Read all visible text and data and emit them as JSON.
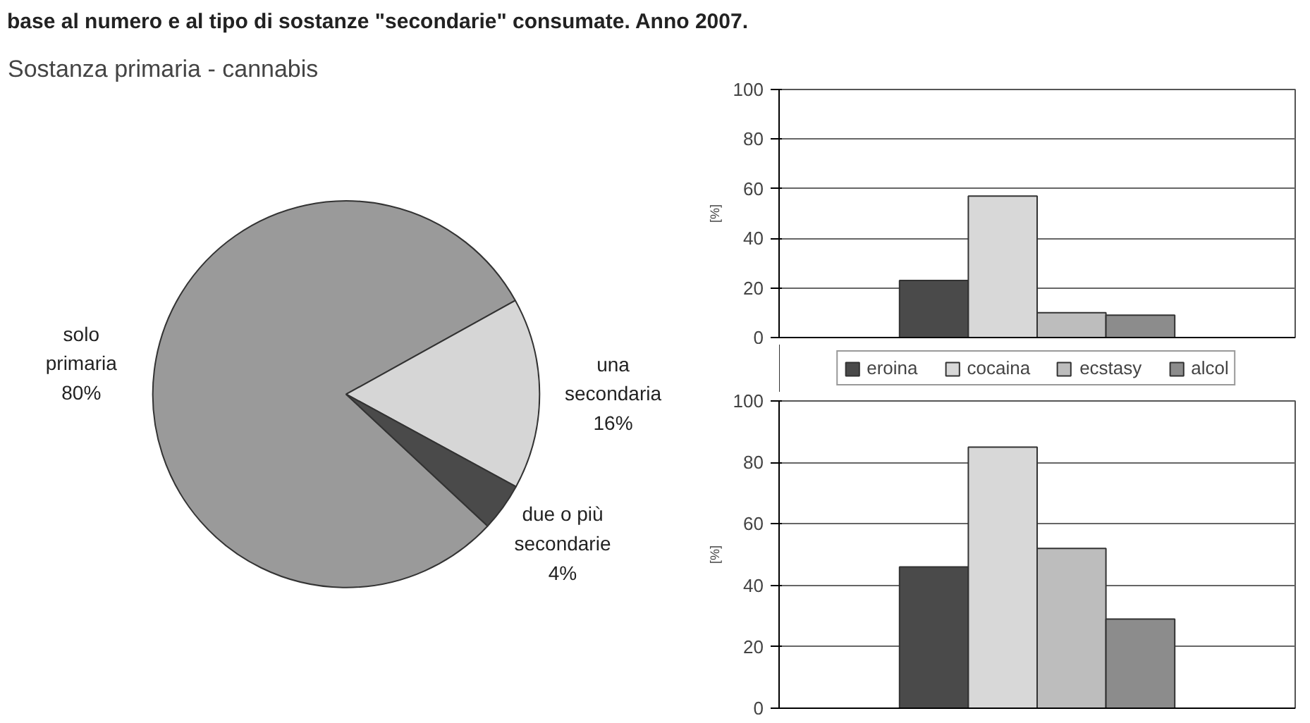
{
  "chart_data": [
    {
      "type": "pie",
      "title": "Sostanza primaria - cannabis",
      "annotations": [
        "base al numero e al tipo di sostanze \"secondarie\" consumate. Anno 2007."
      ],
      "categories": [
        "solo primaria",
        "una secondaria",
        "due o più secondarie"
      ],
      "values": [
        80,
        16,
        4
      ],
      "value_labels": [
        "80%",
        "16%",
        "4%"
      ],
      "colors": [
        "#9a9a9a",
        "#d6d6d6",
        "#4a4a4a"
      ]
    },
    {
      "type": "bar",
      "categories": [
        null
      ],
      "ylabel": "[%]",
      "ylim": [
        0,
        100
      ],
      "yticks": [
        0,
        20,
        40,
        60,
        80,
        100
      ],
      "grid": "y",
      "legend": "bottom",
      "series": [
        {
          "name": "eroina",
          "color": "#4a4a4a",
          "values": [
            23
          ]
        },
        {
          "name": "cocaina",
          "color": "#d8d8d8",
          "values": [
            57
          ]
        },
        {
          "name": "ecstasy",
          "color": "#bdbdbd",
          "values": [
            10
          ]
        },
        {
          "name": "alcol",
          "color": "#8c8c8c",
          "values": [
            9
          ]
        }
      ]
    },
    {
      "type": "bar",
      "categories": [
        null
      ],
      "ylabel": "[%]",
      "ylim": [
        0,
        100
      ],
      "yticks": [
        0,
        20,
        40,
        60,
        80,
        100
      ],
      "grid": "y",
      "series": [
        {
          "color": "#4a4a4a",
          "values": [
            46
          ]
        },
        {
          "color": "#d8d8d8",
          "values": [
            85
          ]
        },
        {
          "color": "#bdbdbd",
          "values": [
            52
          ]
        },
        {
          "color": "#8c8c8c",
          "values": [
            29
          ]
        }
      ]
    }
  ]
}
